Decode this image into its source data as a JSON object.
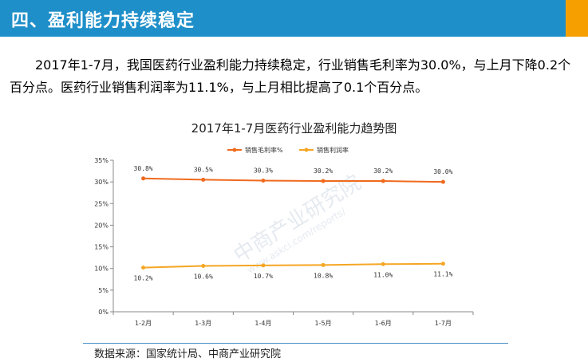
{
  "header": {
    "title": "四、盈利能力持续稳定"
  },
  "body": {
    "paragraph": "2017年1-7月，我国医药行业盈利能力持续稳定，行业销售毛利率为30.0%，与上月下降0.2个百分点。医药行业销售利润率为11.1%，与上月相比提高了0.1个百分点。"
  },
  "colors": {
    "header_bg": "#1f8fc9",
    "accent": "#f5a000",
    "series1": "#f06a1e",
    "series2": "#f5a623"
  },
  "watermark": {
    "text": "中商产业研究院",
    "url": "www.askci.com/reports/"
  },
  "chart_data": {
    "type": "line",
    "title": "2017年1-7月医药行业盈利能力趋势图",
    "categories": [
      "1-2月",
      "1-3月",
      "1-4月",
      "1-5月",
      "1-6月",
      "1-7月"
    ],
    "yticks": [
      "0%",
      "5%",
      "10%",
      "15%",
      "20%",
      "25%",
      "30%",
      "35%"
    ],
    "ylim": [
      0,
      35
    ],
    "grid": false,
    "legend": "top-center",
    "series": [
      {
        "name": "销售毛利率%",
        "values": [
          30.8,
          30.5,
          30.3,
          30.2,
          30.2,
          30.0
        ],
        "labels": [
          "30.8%",
          "30.5%",
          "30.3%",
          "30.2%",
          "30.2%",
          "30.0%"
        ]
      },
      {
        "name": "销售利润率",
        "values": [
          10.2,
          10.6,
          10.7,
          10.8,
          11.0,
          11.1
        ],
        "labels": [
          "10.2%",
          "10.6%",
          "10.7%",
          "10.8%",
          "11.0%",
          "11.1%"
        ]
      }
    ]
  },
  "source": "数据来源：国家统计局、中商产业研究院"
}
